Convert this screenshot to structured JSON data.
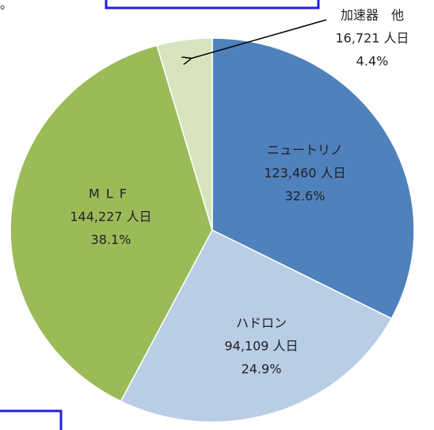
{
  "top_text": "。",
  "chart_data": {
    "type": "pie",
    "categories": [
      "ニュートリノ",
      "ハドロン",
      "MLF",
      "加速器　他"
    ],
    "values": [
      123460,
      94109,
      144227,
      16721
    ],
    "value_labels": [
      "123,460 人日",
      "94,109 人日",
      "144,227 人日",
      "16,721 人日"
    ],
    "percents": [
      32.6,
      24.9,
      38.1,
      4.4
    ],
    "percent_labels": [
      "32.6%",
      "24.9%",
      "38.1%",
      "4.4%"
    ],
    "colors": [
      "#4f81bd",
      "#b9cde5",
      "#9bbb59",
      "#d7e4bd"
    ]
  }
}
